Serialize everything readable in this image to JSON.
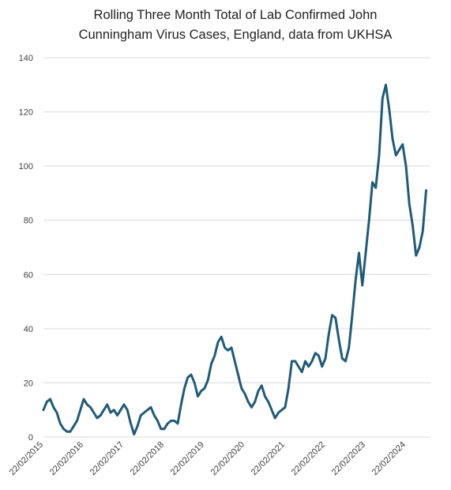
{
  "chart_data": {
    "type": "line",
    "title": [
      "Rolling Three Month Total of Lab Confirmed John",
      "Cunningham Virus Cases, England, data from UKHSA"
    ],
    "categories": [
      "22/02/2015",
      null,
      null,
      null,
      null,
      null,
      null,
      null,
      null,
      null,
      null,
      null,
      "22/02/2016",
      null,
      null,
      null,
      null,
      null,
      null,
      null,
      null,
      null,
      null,
      null,
      "22/02/2017",
      null,
      null,
      null,
      null,
      null,
      null,
      null,
      null,
      null,
      null,
      null,
      "22/02/2018",
      null,
      null,
      null,
      null,
      null,
      null,
      null,
      null,
      null,
      null,
      null,
      "22/02/2019",
      null,
      null,
      null,
      null,
      null,
      null,
      null,
      null,
      null,
      null,
      null,
      "22/02/2020",
      null,
      null,
      null,
      null,
      null,
      null,
      null,
      null,
      null,
      null,
      null,
      "22/02/2021",
      null,
      null,
      null,
      null,
      null,
      null,
      null,
      null,
      null,
      null,
      null,
      "22/02/2022",
      null,
      null,
      null,
      null,
      null,
      null,
      null,
      null,
      null,
      null,
      null,
      "22/02/2023",
      null,
      null,
      null,
      null,
      null,
      null,
      null,
      null,
      null,
      null,
      null,
      "22/02/2024",
      null,
      null,
      null,
      null,
      null,
      null
    ],
    "values": [
      10,
      13,
      14,
      11,
      9,
      5,
      3,
      2,
      2,
      4,
      6,
      10,
      14,
      12,
      11,
      9,
      7,
      8,
      10,
      12,
      9,
      10,
      8,
      10,
      12,
      10,
      5,
      1,
      4,
      8,
      9,
      10,
      11,
      8,
      6,
      3,
      3,
      5,
      6,
      6,
      5,
      12,
      18,
      22,
      23,
      20,
      15,
      17,
      18,
      21,
      27,
      30,
      35,
      37,
      33,
      32,
      33,
      28,
      23,
      18,
      16,
      13,
      11,
      13,
      17,
      19,
      15,
      13,
      10,
      7,
      9,
      10,
      11,
      18,
      28,
      28,
      26,
      24,
      28,
      26,
      28,
      31,
      30,
      26,
      29,
      38,
      45,
      44,
      36,
      29,
      28,
      33,
      45,
      58,
      68,
      56,
      68,
      80,
      94,
      92,
      104,
      125,
      130,
      121,
      110,
      104,
      106,
      108,
      100,
      86,
      78,
      67,
      70,
      76,
      91
    ],
    "color": "#1f5b7a",
    "ylim": [
      0,
      140
    ],
    "yticks": [
      0,
      20,
      40,
      60,
      80,
      100,
      120,
      140
    ],
    "grid": true
  }
}
